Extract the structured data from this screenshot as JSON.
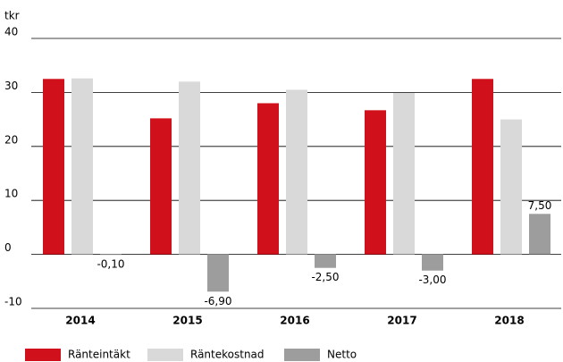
{
  "chart_data": {
    "type": "bar",
    "y_label": "tkr",
    "categories": [
      "2014",
      "2015",
      "2016",
      "2017",
      "2018"
    ],
    "series": [
      {
        "name": "Ränteintäkt",
        "color": "#d0101a",
        "values": [
          32.5,
          25.2,
          28,
          26.7,
          32.5
        ]
      },
      {
        "name": "Räntekostnad",
        "color": "#d9d9d9",
        "values": [
          32.6,
          32,
          30.5,
          29.9,
          25
        ]
      },
      {
        "name": "Netto",
        "color": "#9d9d9d",
        "values": [
          -0.1,
          -6.9,
          -2.5,
          -3,
          7.5
        ],
        "value_labels": [
          "-0,10",
          "-6,90",
          "-2,50",
          "-3,00",
          "7,50"
        ]
      }
    ],
    "ylim": [
      -10,
      40
    ],
    "yticks": [
      -10,
      0,
      10,
      20,
      30,
      40
    ],
    "grid": true
  }
}
